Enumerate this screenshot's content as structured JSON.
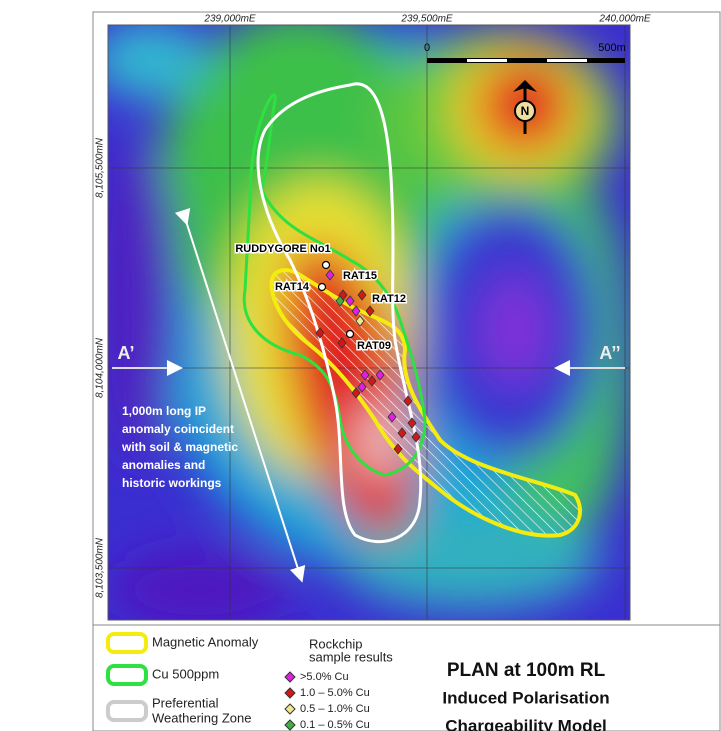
{
  "map": {
    "grid_labels": {
      "eastings": [
        "239,000mE",
        "239,500mE",
        "240,000mE"
      ],
      "northings": [
        "8,105,500mN",
        "8,104,000mN",
        "8,103,500mN"
      ]
    },
    "scale": {
      "start": "0",
      "end": "500m"
    },
    "north": "N",
    "sites": [
      "RUDDYGORE No1",
      "RAT15",
      "RAT14",
      "RAT12",
      "RAT09"
    ],
    "section": {
      "left": "A’",
      "right": "A’’"
    },
    "annotation": [
      "1,000m long IP",
      "anomaly coincident",
      "with soil & magnetic",
      "anomalies and",
      "historic workings"
    ]
  },
  "legend": {
    "outlines": [
      [
        "Magnetic Anomaly"
      ],
      [
        "Cu 500ppm"
      ],
      [
        "Preferential",
        "Weathering Zone"
      ]
    ],
    "rockchip_title": [
      "Rockchip",
      "sample results"
    ],
    "rockchip": [
      ">5.0% Cu",
      "1.0 – 5.0% Cu",
      "0.5 – 1.0% Cu",
      "0.1 – 0.5% Cu"
    ]
  },
  "title": [
    "PLAN at 100m RL",
    "Induced Polarisation",
    "Chargeability Model"
  ]
}
